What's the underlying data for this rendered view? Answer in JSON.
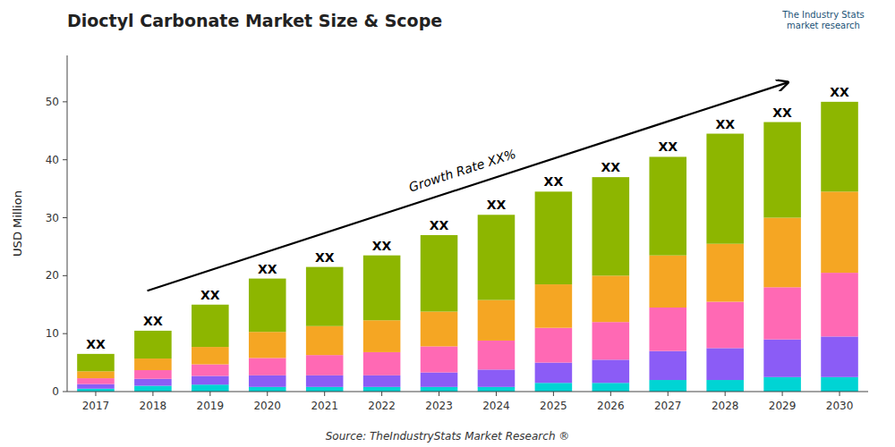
{
  "chart_data": {
    "type": "bar",
    "stacked": true,
    "grid": false,
    "title": "Dioctyl Carbonate Market Size & Scope",
    "ylabel": "USD Million",
    "source": "Source: TheIndustryStats Market Research ®",
    "logo": "The Industry Stats\nmarket research",
    "categories": [
      "2017",
      "2018",
      "2019",
      "2020",
      "2021",
      "2022",
      "2023",
      "2024",
      "2025",
      "2026",
      "2027",
      "2028",
      "2029",
      "2030"
    ],
    "series": [
      {
        "color": "#00D4D4",
        "values": [
          0.5,
          1.0,
          1.2,
          0.8,
          0.8,
          0.8,
          0.8,
          0.8,
          1.5,
          1.5,
          2.0,
          2.0,
          2.5,
          2.5
        ]
      },
      {
        "color": "#8B5CF6",
        "values": [
          0.8,
          1.2,
          1.5,
          2.0,
          2.0,
          2.0,
          2.5,
          3.0,
          3.5,
          4.0,
          5.0,
          5.5,
          6.5,
          7.0
        ]
      },
      {
        "color": "#FF69B4",
        "values": [
          1.0,
          1.5,
          2.0,
          3.0,
          3.5,
          4.0,
          4.5,
          5.0,
          6.0,
          6.5,
          7.5,
          8.0,
          9.0,
          11.0
        ]
      },
      {
        "color": "#F5A623",
        "values": [
          1.2,
          2.0,
          3.0,
          4.5,
          5.0,
          5.5,
          6.0,
          7.0,
          7.5,
          8.0,
          9.0,
          10.0,
          12.0,
          14.0
        ]
      },
      {
        "color": "#8DB600",
        "values": [
          3.0,
          4.8,
          7.3,
          9.2,
          10.2,
          11.2,
          13.2,
          14.7,
          16.0,
          17.0,
          17.0,
          19.0,
          16.5,
          15.5
        ]
      }
    ],
    "stack_labels": [
      "XX",
      "XX",
      "XX",
      "XX",
      "XX",
      "XX",
      "XX",
      "XX",
      "XX",
      "XX",
      "XX",
      "XX",
      "XX",
      "XX"
    ],
    "annotations": [
      "Growth Rate XX%"
    ],
    "ylim": [
      0,
      58
    ],
    "yticks": [
      0,
      10,
      20,
      30,
      40,
      50
    ]
  }
}
